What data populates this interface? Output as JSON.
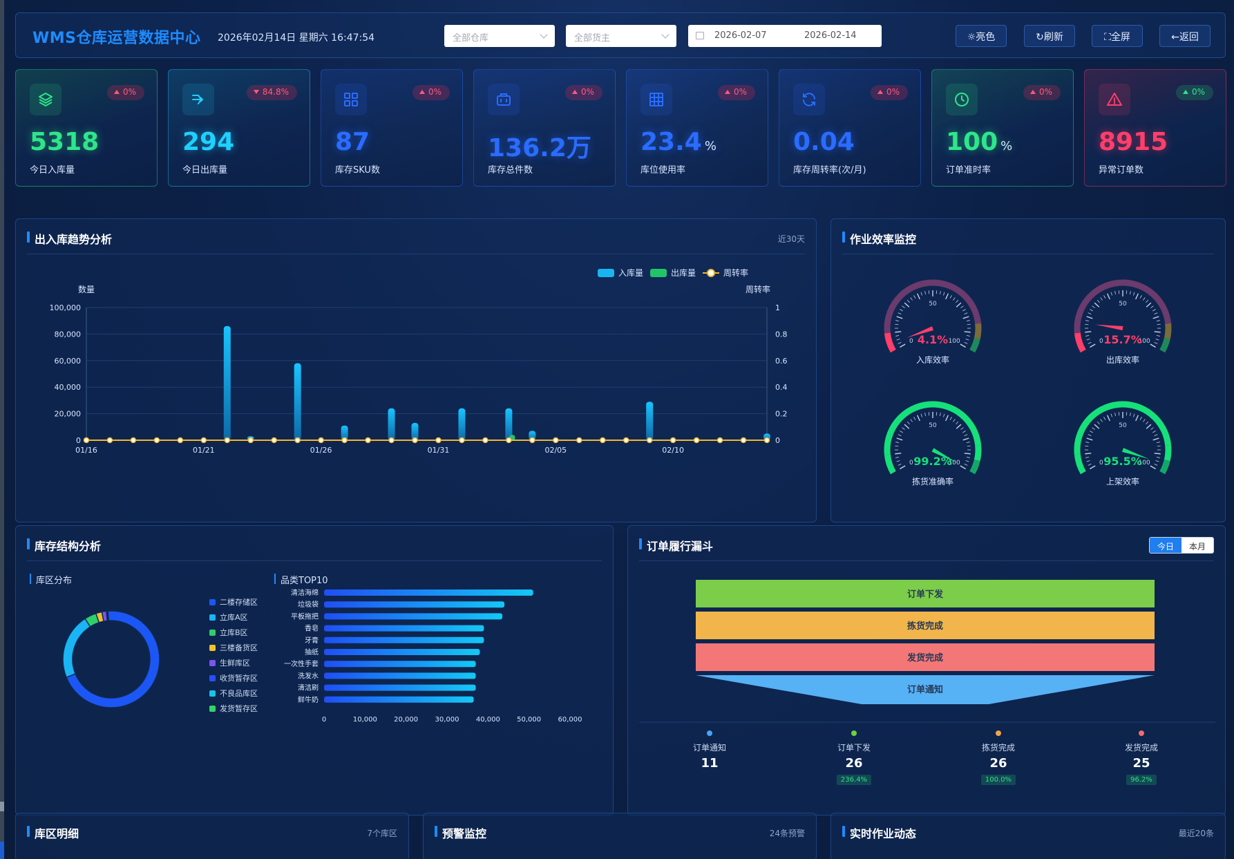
{
  "header": {
    "title": "WMS仓库运营数据中心",
    "datetime": "2026年02月14日 星期六 16:47:54",
    "warehouse_select": "全部仓库",
    "owner_select": "全部货主",
    "date_start": "2026-02-07",
    "date_end": "2026-02-14",
    "buttons": {
      "light": "☼亮色",
      "refresh": "↻刷新",
      "fullscreen": "⛶全屏",
      "back": "←返回"
    }
  },
  "kpis": [
    {
      "value": "5318",
      "unit": "",
      "label": "今日入库量",
      "change": "0%",
      "dir": "up",
      "color": "#2ee68a",
      "icon": "layers-icon"
    },
    {
      "value": "294",
      "unit": "",
      "label": "今日出库量",
      "change": "84.8%",
      "dir": "down",
      "color": "#1fd0ff",
      "icon": "outbound-arrow-icon"
    },
    {
      "value": "87",
      "unit": "",
      "label": "库存SKU数",
      "change": "0%",
      "dir": "up",
      "color": "#2a6cff",
      "icon": "grid-icon"
    },
    {
      "value": "136.2万",
      "unit": "",
      "label": "库存总件数",
      "change": "0%",
      "dir": "up",
      "color": "#2a6cff",
      "icon": "briefcase-icon"
    },
    {
      "value": "23.4",
      "unit": "%",
      "label": "库位使用率",
      "change": "0%",
      "dir": "up",
      "color": "#2a6cff",
      "icon": "table-icon"
    },
    {
      "value": "0.04",
      "unit": "",
      "label": "库存周转率(次/月)",
      "change": "0%",
      "dir": "up",
      "color": "#2a6cff",
      "icon": "refresh-cycle-icon"
    },
    {
      "value": "100",
      "unit": "%",
      "label": "订单准时率",
      "change": "0%",
      "dir": "up",
      "color": "#2ee68a",
      "icon": "clock-icon"
    },
    {
      "value": "8915",
      "unit": "",
      "label": "异常订单数",
      "change": "0%",
      "dir": "up",
      "color": "#ff3e6a",
      "icon": "warning-icon"
    }
  ],
  "trend": {
    "title": "出入库趋势分析",
    "note": "近30天",
    "legend": [
      "入库量",
      "出库量",
      "周转率"
    ]
  },
  "chart_data": [
    {
      "type": "bar",
      "title": "出入库趋势分析",
      "ylabel": "数量",
      "y2label": "周转率",
      "ylim": [
        0,
        100000
      ],
      "y2lim": [
        0,
        1
      ],
      "yticks": [
        "100,000",
        "80,000",
        "60,000",
        "40,000",
        "20,000",
        "0"
      ],
      "y2ticks": [
        "1",
        "0.8",
        "0.6",
        "0.4",
        "0.2",
        "0"
      ],
      "xticks": [
        "01/16",
        "01/21",
        "01/26",
        "01/31",
        "02/05",
        "02/10"
      ],
      "x": [
        "01/16",
        "01/17",
        "01/18",
        "01/19",
        "01/20",
        "01/21",
        "01/22",
        "01/23",
        "01/24",
        "01/25",
        "01/26",
        "01/27",
        "01/28",
        "01/29",
        "01/30",
        "01/31",
        "02/01",
        "02/02",
        "02/03",
        "02/04",
        "02/05",
        "02/06",
        "02/07",
        "02/08",
        "02/09",
        "02/10",
        "02/11",
        "02/12",
        "02/13",
        "02/14"
      ],
      "series": [
        {
          "name": "入库量",
          "values": [
            0,
            0,
            0,
            0,
            0,
            0,
            86000,
            3000,
            0,
            58000,
            0,
            11000,
            0,
            24000,
            13000,
            0,
            24000,
            0,
            24000,
            7000,
            0,
            0,
            0,
            0,
            29000,
            0,
            0,
            0,
            0,
            5000
          ]
        },
        {
          "name": "出库量",
          "values": [
            0,
            0,
            0,
            0,
            0,
            0,
            0,
            0,
            0,
            0,
            0,
            0,
            0,
            0,
            0,
            0,
            0,
            0,
            4000,
            0,
            0,
            0,
            0,
            0,
            0,
            0,
            0,
            0,
            0,
            0
          ]
        },
        {
          "name": "周转率",
          "values": [
            0,
            0,
            0,
            0,
            0,
            0,
            0,
            0,
            0,
            0,
            0,
            0,
            0,
            0,
            0,
            0,
            0,
            0,
            0,
            0,
            0,
            0,
            0,
            0,
            0,
            0,
            0,
            0,
            0,
            0
          ]
        }
      ]
    },
    {
      "type": "gauge",
      "title": "作业效率监控",
      "items": [
        {
          "name": "入库效率",
          "value": 4.1,
          "label": "4.1%",
          "color": "#ff3e6a"
        },
        {
          "name": "出库效率",
          "value": 15.7,
          "label": "15.7%",
          "color": "#ff3e6a"
        },
        {
          "name": "拣货准确率",
          "value": 99.2,
          "label": "99.2%",
          "color": "#16e07a"
        },
        {
          "name": "上架效率",
          "value": 95.5,
          "label": "95.5%",
          "color": "#16e07a"
        }
      ],
      "ticks": [
        "0",
        "50",
        "100"
      ]
    },
    {
      "type": "pie",
      "title": "库区分布",
      "categories": [
        "二楼存储区",
        "立库A区",
        "立库B区",
        "三楼备货区",
        "生鲜库区",
        "收货暂存区",
        "不良品库区",
        "发货暂存区"
      ],
      "values": [
        70,
        22,
        4,
        2,
        1.5,
        0.3,
        0.1,
        0.1
      ],
      "colors": [
        "#1c57f5",
        "#1ab5f5",
        "#2fcf6a",
        "#f0c12a",
        "#7a55f0",
        "#2a4ef5",
        "#18c2e8",
        "#32d465"
      ]
    },
    {
      "type": "bar",
      "orientation": "horizontal",
      "title": "品类TOP10",
      "categories": [
        "清洁海绵",
        "垃圾袋",
        "平板拖把",
        "香皂",
        "牙膏",
        "抽纸",
        "一次性手套",
        "洗发水",
        "清洁刷",
        "鲜牛奶"
      ],
      "values": [
        51000,
        44000,
        43500,
        39000,
        39000,
        38000,
        37000,
        37000,
        37000,
        36500
      ],
      "xlim": [
        0,
        60000
      ],
      "xticks": [
        "0",
        "10,000",
        "20,000",
        "30,000",
        "40,000",
        "50,000",
        "60,000"
      ]
    }
  ],
  "efficiency": {
    "title": "作业效率监控"
  },
  "inventory": {
    "title": "库存结构分析",
    "zone_sub": "库区分布",
    "cat_sub": "品类TOP10"
  },
  "funnel": {
    "title": "订单履行漏斗",
    "tabs": [
      "今日",
      "本月"
    ],
    "stages": [
      {
        "name": "订单下发",
        "color": "#7ccd4a"
      },
      {
        "name": "拣货完成",
        "color": "#f2b54b"
      },
      {
        "name": "发货完成",
        "color": "#f37777"
      },
      {
        "name": "订单通知",
        "color": "#57b1f5"
      }
    ],
    "stats": [
      {
        "name": "订单通知",
        "value": "11",
        "pct": "",
        "color": "#4aa3f5"
      },
      {
        "name": "订单下发",
        "value": "26",
        "pct": "236.4%",
        "color": "#6ed042"
      },
      {
        "name": "拣货完成",
        "value": "26",
        "pct": "100.0%",
        "color": "#f2a34b"
      },
      {
        "name": "发货完成",
        "value": "25",
        "pct": "96.2%",
        "color": "#f36b6b"
      }
    ]
  },
  "bottom": {
    "zone_detail": {
      "title": "库区明细",
      "note": "7个库区"
    },
    "alert": {
      "title": "预警监控",
      "note": "24条预警"
    },
    "realtime": {
      "title": "实时作业动态",
      "note": "最近20条"
    }
  }
}
